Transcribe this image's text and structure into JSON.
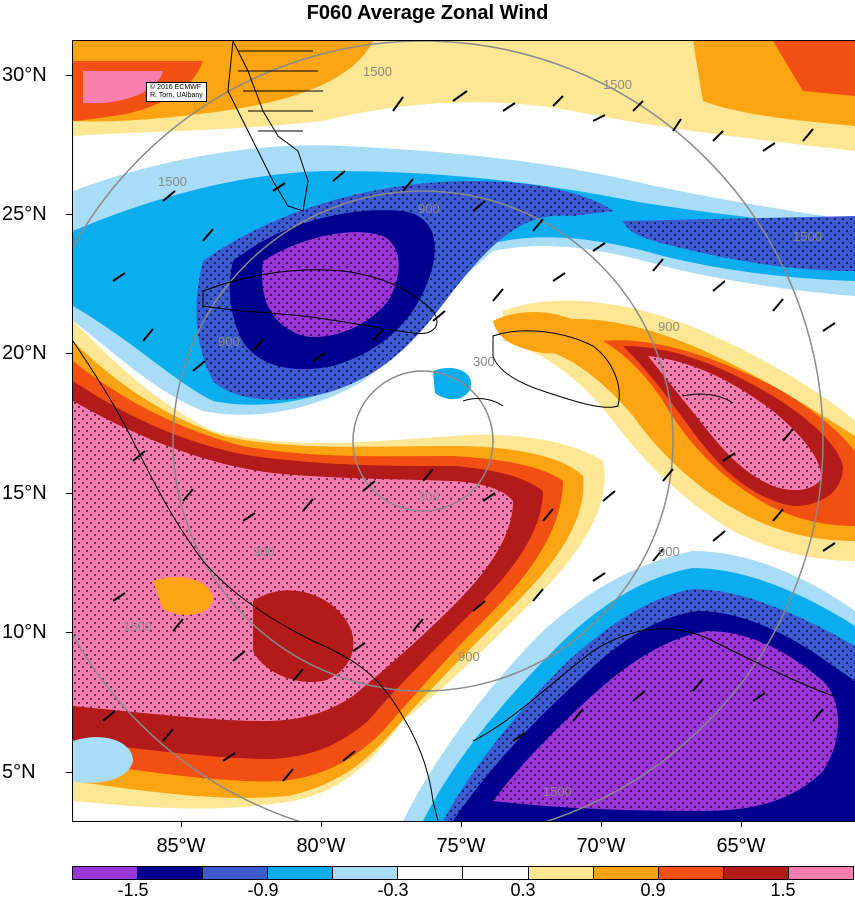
{
  "title": "F060 Average Zonal Wind",
  "credit": {
    "line1": "© 2016 ECMWF",
    "line2": "R. Torn, UAlbany"
  },
  "lat_labels": [
    "30°N",
    "25°N",
    "20°N",
    "15°N",
    "10°N",
    "5°N"
  ],
  "lon_labels": [
    "85°W",
    "80°W",
    "75°W",
    "70°W",
    "65°W"
  ],
  "contour_labels": [
    "1500",
    "1500",
    "1500",
    "1500",
    "1500",
    "1500",
    "900",
    "900",
    "900",
    "900",
    "900",
    "300",
    "300",
    "900"
  ],
  "colorbar": {
    "colors": [
      "#9a35d6",
      "#00008f",
      "#3d5bd1",
      "#0aaeee",
      "#a9dcf6",
      "#ffffff",
      "#ffffff",
      "#fde795",
      "#fca411",
      "#f25012",
      "#b31a1a",
      "#f97eb0"
    ],
    "labels": [
      "-1.5",
      "-0.9",
      "-0.3",
      "0.3",
      "0.9",
      "1.5"
    ]
  },
  "chart_data": {
    "type": "heatmap",
    "title": "F060 Average Zonal Wind",
    "x_ticks": [
      "85°W",
      "80°W",
      "75°W",
      "70°W",
      "65°W"
    ],
    "y_ticks": [
      "30°N",
      "25°N",
      "20°N",
      "15°N",
      "10°N",
      "5°N"
    ],
    "levels": [
      -1.5,
      -0.9,
      -0.3,
      0.3,
      0.9,
      1.5
    ],
    "range_contour_values_km": [
      300,
      900,
      1500
    ],
    "features": [
      {
        "name": "negative anomaly",
        "center_lat": 22.5,
        "center_lon": -79.5,
        "level": "< -1.5"
      },
      {
        "name": "negative anomaly",
        "center_lat": 7.5,
        "center_lon": -67,
        "level": "< -1.5"
      },
      {
        "name": "positive anomaly",
        "center_lat": 15,
        "center_lon": -82,
        "level": "> 1.5"
      },
      {
        "name": "positive anomaly",
        "center_lat": 18,
        "center_lon": -66.5,
        "level": "> 1.5"
      }
    ]
  }
}
